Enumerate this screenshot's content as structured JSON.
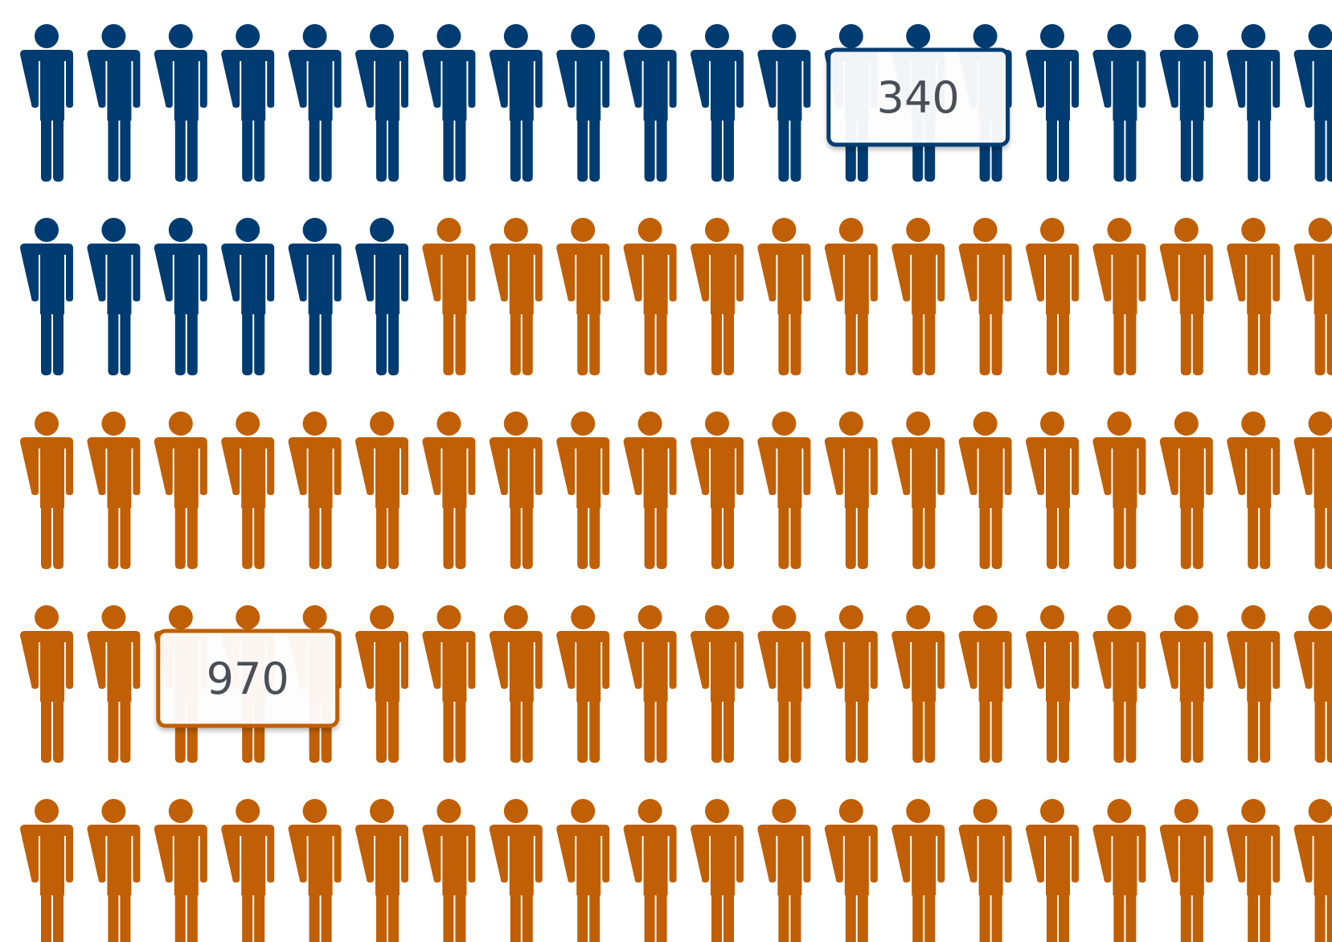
{
  "chart_data": {
    "type": "pictograph",
    "icon": "person-icon",
    "columns": 20,
    "rows": 5,
    "series": [
      {
        "count": 26,
        "color": "#003c71"
      },
      {
        "count": 74,
        "color": "#c05f05"
      }
    ],
    "callouts": [
      {
        "series": 0,
        "text": "340",
        "row": 0,
        "col_start": 12,
        "col_end": 14
      },
      {
        "series": 1,
        "text": "970",
        "row": 3,
        "col_start": 2,
        "col_end": 4
      }
    ]
  }
}
